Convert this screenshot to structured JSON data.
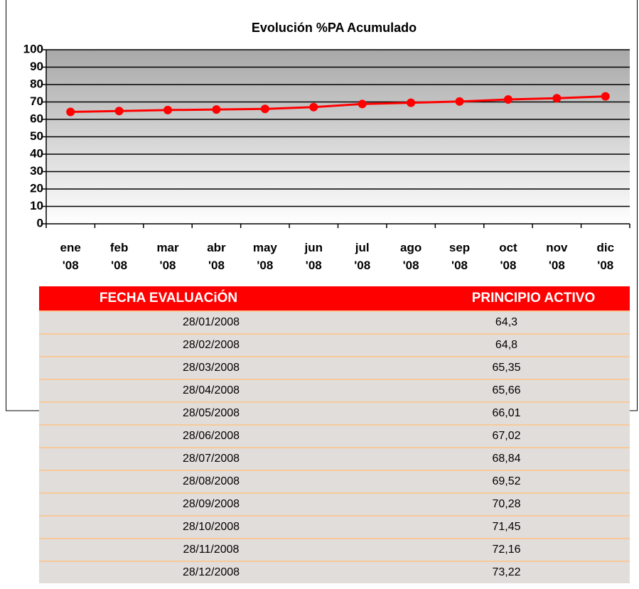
{
  "chart_data": {
    "type": "line",
    "title": "Evolución %PA Acumulado",
    "categories": [
      "ene\n'08",
      "feb\n'08",
      "mar\n'08",
      "abr\n'08",
      "may\n'08",
      "jun\n'08",
      "jul\n'08",
      "ago\n'08",
      "sep\n'08",
      "oct\n'08",
      "nov\n'08",
      "dic\n'08"
    ],
    "values": [
      64.3,
      64.8,
      65.35,
      65.66,
      66.01,
      67.02,
      68.84,
      69.52,
      70.28,
      71.45,
      72.16,
      73.22
    ],
    "color": "#ff0000",
    "ylim": [
      0,
      100
    ],
    "yticks": [
      0,
      10,
      20,
      30,
      40,
      50,
      60,
      70,
      80,
      90,
      100
    ],
    "grid": true
  },
  "table": {
    "header": [
      "FECHA EVALUACiÓN",
      "PRINCIPIO ACTIVO"
    ],
    "rows": [
      [
        "28/01/2008",
        "64,3"
      ],
      [
        "28/02/2008",
        "64,8"
      ],
      [
        "28/03/2008",
        "65,35"
      ],
      [
        "28/04/2008",
        "65,66"
      ],
      [
        "28/05/2008",
        "66,01"
      ],
      [
        "28/06/2008",
        "67,02"
      ],
      [
        "28/07/2008",
        "68,84"
      ],
      [
        "28/08/2008",
        "69,52"
      ],
      [
        "28/09/2008",
        "70,28"
      ],
      [
        "28/10/2008",
        "71,45"
      ],
      [
        "28/11/2008",
        "72,16"
      ],
      [
        "28/12/2008",
        "73,22"
      ]
    ]
  }
}
